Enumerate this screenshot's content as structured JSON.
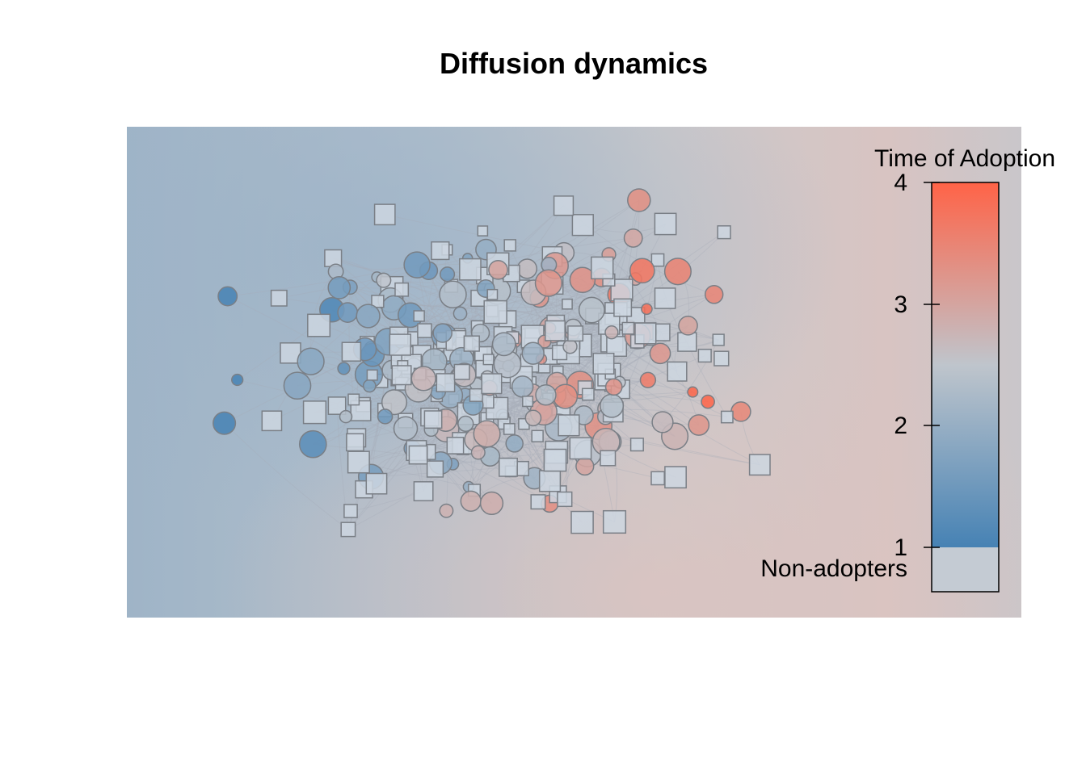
{
  "title": "Diffusion dynamics",
  "legend": {
    "title": "Time of Adoption",
    "ticks": [
      "1",
      "2",
      "3",
      "4"
    ],
    "non_adopters_label": "Non-adopters",
    "colors": {
      "low": "#4682B4",
      "mid": "#BFC5CC",
      "high": "#FF6347",
      "non_adopter": "#C4CBD3"
    }
  },
  "node_key": {
    "circle": "adopter",
    "square": "non-adopter"
  }
}
